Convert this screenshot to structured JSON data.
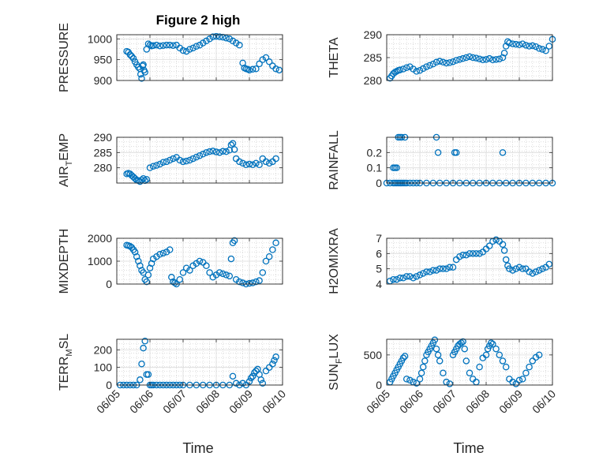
{
  "figure": {
    "title": "Figure 2 high",
    "x_label": "Time"
  },
  "colors": {
    "marker": "#0072BD",
    "axis": "#262626",
    "grid_minor": "#c8c8c8",
    "grid_major": "#dcdcdc"
  },
  "chart_data": [
    {
      "id": "pressure",
      "type": "scatter",
      "marker": "open-circle",
      "ylabel": "PRESSURE",
      "ylabel_sub": "",
      "xlim": [
        0,
        5
      ],
      "xticks": [
        0,
        1,
        2,
        3,
        4,
        5
      ],
      "xticklabels": [
        "06/05",
        "06/06",
        "06/07",
        "06/08",
        "06/09",
        "06/10"
      ],
      "show_xticklabels": false,
      "ylim": [
        900,
        1010
      ],
      "yticks": [
        900,
        950,
        1000
      ],
      "yticklabels": [
        "900",
        "950",
        "1000"
      ],
      "grid": "on-minor",
      "x": [
        0.3,
        0.35,
        0.4,
        0.45,
        0.5,
        0.55,
        0.6,
        0.65,
        0.7,
        0.72,
        0.75,
        0.78,
        0.8,
        0.82,
        0.85,
        0.9,
        0.95,
        1.0,
        1.05,
        1.1,
        1.2,
        1.3,
        1.4,
        1.5,
        1.6,
        1.7,
        1.8,
        1.9,
        2.0,
        2.1,
        2.2,
        2.3,
        2.4,
        2.5,
        2.6,
        2.7,
        2.8,
        2.9,
        3.0,
        3.1,
        3.2,
        3.3,
        3.4,
        3.5,
        3.6,
        3.7,
        3.8,
        3.85,
        3.9,
        3.95,
        4.0,
        4.1,
        4.2,
        4.3,
        4.4,
        4.5,
        4.6,
        4.7,
        4.8,
        4.9
      ],
      "y": [
        970,
        968,
        962,
        958,
        953,
        945,
        938,
        932,
        928,
        915,
        905,
        935,
        938,
        925,
        920,
        975,
        988,
        985,
        983,
        984,
        985,
        983,
        984,
        985,
        985,
        984,
        985,
        978,
        972,
        970,
        975,
        978,
        982,
        985,
        990,
        995,
        1000,
        1005,
        1006,
        1005,
        1004,
        1002,
        1000,
        995,
        990,
        985,
        942,
        930,
        928,
        927,
        925,
        927,
        928,
        940,
        950,
        955,
        945,
        935,
        928,
        925
      ]
    },
    {
      "id": "theta",
      "type": "scatter",
      "marker": "open-circle",
      "ylabel": "THETA",
      "ylabel_sub": "",
      "xlim": [
        0,
        5
      ],
      "xticks": [
        0,
        1,
        2,
        3,
        4,
        5
      ],
      "xticklabels": [
        "06/05",
        "06/06",
        "06/07",
        "06/08",
        "06/09",
        "06/10"
      ],
      "show_xticklabels": false,
      "ylim": [
        280,
        290
      ],
      "yticks": [
        280,
        285,
        290
      ],
      "yticklabels": [
        "280",
        "285",
        "290"
      ],
      "grid": "on-minor",
      "x": [
        0.1,
        0.15,
        0.2,
        0.25,
        0.3,
        0.35,
        0.4,
        0.5,
        0.6,
        0.7,
        0.8,
        0.9,
        1.0,
        1.1,
        1.2,
        1.3,
        1.4,
        1.5,
        1.6,
        1.7,
        1.8,
        1.9,
        2.0,
        2.1,
        2.2,
        2.3,
        2.4,
        2.5,
        2.6,
        2.7,
        2.8,
        2.9,
        3.0,
        3.1,
        3.2,
        3.3,
        3.4,
        3.5,
        3.55,
        3.6,
        3.65,
        3.7,
        3.8,
        3.9,
        4.0,
        4.1,
        4.2,
        4.3,
        4.4,
        4.5,
        4.6,
        4.7,
        4.8,
        4.9,
        5.0
      ],
      "y": [
        280.5,
        281.0,
        281.5,
        281.8,
        282.0,
        282.2,
        282.3,
        282.5,
        282.8,
        283.0,
        282.5,
        282.0,
        282.2,
        282.6,
        283.0,
        283.3,
        283.6,
        284.0,
        284.2,
        284.0,
        283.8,
        283.9,
        284.1,
        284.4,
        284.6,
        284.8,
        285.0,
        285.2,
        285.0,
        284.9,
        284.7,
        284.5,
        284.6,
        284.8,
        284.5,
        284.6,
        284.7,
        285.0,
        286.0,
        287.5,
        288.5,
        288.2,
        288.0,
        287.9,
        287.8,
        288.0,
        287.7,
        287.5,
        287.6,
        287.4,
        287.0,
        286.8,
        286.5,
        287.5,
        289.0
      ]
    },
    {
      "id": "air_temp",
      "type": "scatter",
      "marker": "open-circle",
      "ylabel": "AIR",
      "ylabel_sub": "T",
      "ylabel_after": "EMP",
      "xlim": [
        0,
        5
      ],
      "xticks": [
        0,
        1,
        2,
        3,
        4,
        5
      ],
      "xticklabels": [
        "06/05",
        "06/06",
        "06/07",
        "06/08",
        "06/09",
        "06/10"
      ],
      "show_xticklabels": false,
      "ylim": [
        275,
        290
      ],
      "yticks": [
        280,
        285,
        290
      ],
      "yticklabels": [
        "280",
        "285",
        "290"
      ],
      "grid": "on-minor",
      "x": [
        0.3,
        0.35,
        0.4,
        0.45,
        0.5,
        0.55,
        0.6,
        0.65,
        0.7,
        0.75,
        0.8,
        0.85,
        0.9,
        1.0,
        1.1,
        1.2,
        1.3,
        1.4,
        1.5,
        1.6,
        1.7,
        1.8,
        1.9,
        2.0,
        2.1,
        2.2,
        2.3,
        2.4,
        2.5,
        2.6,
        2.7,
        2.8,
        2.9,
        3.0,
        3.1,
        3.2,
        3.3,
        3.4,
        3.45,
        3.5,
        3.55,
        3.6,
        3.7,
        3.8,
        3.9,
        4.0,
        4.1,
        4.2,
        4.3,
        4.4,
        4.5,
        4.6,
        4.7,
        4.8
      ],
      "y": [
        278.0,
        278.2,
        278.0,
        277.5,
        277.0,
        276.5,
        276.0,
        275.8,
        275.5,
        276.0,
        276.5,
        275.8,
        276.2,
        280.0,
        280.5,
        280.8,
        281.2,
        281.8,
        282.0,
        282.5,
        283.0,
        283.4,
        282.5,
        282.0,
        282.2,
        282.5,
        283.0,
        283.5,
        284.0,
        284.5,
        285.0,
        285.3,
        285.5,
        285.2,
        285.0,
        285.4,
        285.3,
        285.8,
        287.5,
        288.0,
        286.0,
        283.0,
        282.0,
        281.5,
        281.0,
        281.2,
        281.0,
        281.5,
        281.0,
        283.0,
        282.0,
        281.5,
        282.0,
        283.0
      ]
    },
    {
      "id": "rainfall",
      "type": "scatter",
      "marker": "open-circle",
      "ylabel": "RAINFALL",
      "ylabel_sub": "",
      "xlim": [
        0,
        5
      ],
      "xticks": [
        0,
        1,
        2,
        3,
        4,
        5
      ],
      "xticklabels": [
        "06/05",
        "06/06",
        "06/07",
        "06/08",
        "06/09",
        "06/10"
      ],
      "show_xticklabels": false,
      "ylim": [
        0,
        0.3
      ],
      "yticks": [
        0,
        0.1,
        0.2
      ],
      "yticklabels": [
        "0",
        "0.1",
        "0.2"
      ],
      "grid": "on-minor",
      "x": [
        0.0,
        0.1,
        0.2,
        0.25,
        0.3,
        0.35,
        0.4,
        0.45,
        0.5,
        0.55,
        0.6,
        0.7,
        0.8,
        0.9,
        1.0,
        1.2,
        1.4,
        1.6,
        1.8,
        2.0,
        2.2,
        2.4,
        2.6,
        2.8,
        3.0,
        3.2,
        3.4,
        3.6,
        3.8,
        4.0,
        4.2,
        4.4,
        4.6,
        4.8,
        5.0,
        0.2,
        0.25,
        0.3,
        0.35,
        0.4,
        0.45,
        0.55,
        1.5,
        1.55,
        2.05,
        2.1,
        3.5
      ],
      "y": [
        0,
        0,
        0,
        0,
        0,
        0,
        0,
        0,
        0,
        0,
        0,
        0,
        0,
        0,
        0,
        0,
        0,
        0,
        0,
        0,
        0,
        0,
        0,
        0,
        0,
        0,
        0,
        0,
        0,
        0,
        0,
        0,
        0,
        0,
        0,
        0.1,
        0.1,
        0.1,
        0.3,
        0.3,
        0.3,
        0.3,
        0.3,
        0.2,
        0.2,
        0.2,
        0.2
      ]
    },
    {
      "id": "mixdepth",
      "type": "scatter",
      "marker": "open-circle",
      "ylabel": "MIXDEPTH",
      "ylabel_sub": "",
      "xlim": [
        0,
        5
      ],
      "xticks": [
        0,
        1,
        2,
        3,
        4,
        5
      ],
      "xticklabels": [
        "06/05",
        "06/06",
        "06/07",
        "06/08",
        "06/09",
        "06/10"
      ],
      "show_xticklabels": false,
      "ylim": [
        0,
        2000
      ],
      "yticks": [
        0,
        1000,
        2000
      ],
      "yticklabels": [
        "0",
        "1000",
        "2000"
      ],
      "grid": "on-minor",
      "x": [
        0.3,
        0.35,
        0.4,
        0.45,
        0.5,
        0.55,
        0.6,
        0.65,
        0.7,
        0.75,
        0.8,
        0.85,
        0.9,
        0.95,
        1.0,
        1.05,
        1.1,
        1.2,
        1.3,
        1.4,
        1.5,
        1.6,
        1.65,
        1.7,
        1.75,
        1.8,
        1.9,
        2.0,
        2.1,
        2.2,
        2.3,
        2.4,
        2.5,
        2.6,
        2.7,
        2.8,
        2.9,
        3.0,
        3.1,
        3.2,
        3.3,
        3.4,
        3.45,
        3.5,
        3.55,
        3.6,
        3.7,
        3.8,
        3.9,
        4.0,
        4.1,
        4.2,
        4.3,
        4.4,
        4.5,
        4.6,
        4.7,
        4.8
      ],
      "y": [
        1700,
        1680,
        1650,
        1600,
        1500,
        1400,
        1200,
        1000,
        800,
        600,
        500,
        200,
        100,
        400,
        700,
        900,
        1100,
        1200,
        1300,
        1350,
        1400,
        1500,
        300,
        100,
        50,
        0,
        200,
        500,
        700,
        600,
        800,
        900,
        1000,
        950,
        800,
        500,
        300,
        400,
        500,
        450,
        400,
        350,
        1100,
        1800,
        1900,
        200,
        100,
        50,
        0,
        30,
        50,
        100,
        150,
        500,
        1000,
        1200,
        1500,
        1800
      ]
    },
    {
      "id": "h2omixra",
      "type": "scatter",
      "marker": "open-circle",
      "ylabel": "H2OMIXRA",
      "ylabel_sub": "",
      "xlim": [
        0,
        5
      ],
      "xticks": [
        0,
        1,
        2,
        3,
        4,
        5
      ],
      "xticklabels": [
        "06/05",
        "06/06",
        "06/07",
        "06/08",
        "06/09",
        "06/10"
      ],
      "show_xticklabels": false,
      "ylim": [
        4,
        7
      ],
      "yticks": [
        4,
        5,
        6,
        7
      ],
      "yticklabels": [
        "4",
        "5",
        "6",
        "7"
      ],
      "grid": "on-minor",
      "x": [
        0.1,
        0.2,
        0.3,
        0.4,
        0.5,
        0.6,
        0.7,
        0.8,
        0.9,
        1.0,
        1.1,
        1.2,
        1.3,
        1.4,
        1.5,
        1.6,
        1.7,
        1.8,
        1.9,
        2.0,
        2.1,
        2.2,
        2.3,
        2.4,
        2.5,
        2.6,
        2.7,
        2.8,
        2.9,
        3.0,
        3.1,
        3.2,
        3.3,
        3.4,
        3.5,
        3.55,
        3.6,
        3.65,
        3.7,
        3.8,
        3.9,
        4.0,
        4.1,
        4.2,
        4.3,
        4.4,
        4.5,
        4.6,
        4.7,
        4.8,
        4.9
      ],
      "y": [
        4.2,
        4.3,
        4.3,
        4.4,
        4.4,
        4.5,
        4.5,
        4.4,
        4.5,
        4.6,
        4.7,
        4.8,
        4.8,
        4.9,
        4.9,
        5.0,
        5.0,
        5.0,
        5.1,
        5.1,
        5.6,
        5.8,
        5.9,
        5.9,
        6.0,
        6.0,
        6.0,
        6.0,
        6.1,
        6.3,
        6.5,
        6.8,
        6.9,
        6.8,
        6.6,
        6.2,
        5.6,
        5.2,
        5.0,
        4.9,
        5.0,
        5.1,
        5.0,
        5.0,
        4.8,
        4.7,
        4.8,
        4.9,
        5.0,
        5.1,
        5.3
      ]
    },
    {
      "id": "terr_msl",
      "type": "scatter",
      "marker": "open-circle",
      "ylabel": "TERR",
      "ylabel_sub": "M",
      "ylabel_after": "SL",
      "xlim": [
        0,
        5
      ],
      "xticks": [
        0,
        1,
        2,
        3,
        4,
        5
      ],
      "xticklabels": [
        "06/05",
        "06/06",
        "06/07",
        "06/08",
        "06/09",
        "06/10"
      ],
      "show_xticklabels": true,
      "ylim": [
        0,
        260
      ],
      "yticks": [
        0,
        100,
        200
      ],
      "yticklabels": [
        "0",
        "100",
        "200"
      ],
      "grid": "on-minor",
      "x": [
        0.1,
        0.2,
        0.3,
        0.4,
        0.5,
        0.6,
        0.7,
        0.75,
        0.8,
        0.85,
        0.9,
        0.95,
        1.0,
        1.05,
        1.1,
        1.2,
        1.3,
        1.4,
        1.5,
        1.6,
        1.7,
        1.8,
        1.9,
        2.0,
        2.2,
        2.4,
        2.6,
        2.8,
        3.0,
        3.2,
        3.4,
        3.5,
        3.6,
        3.7,
        3.8,
        3.9,
        4.0,
        4.05,
        4.1,
        4.15,
        4.2,
        4.25,
        4.3,
        4.35,
        4.4,
        4.5,
        4.6,
        4.7,
        4.75,
        4.8
      ],
      "y": [
        0,
        0,
        0,
        0,
        0,
        0,
        30,
        120,
        210,
        250,
        60,
        60,
        0,
        0,
        0,
        0,
        0,
        0,
        0,
        0,
        0,
        0,
        0,
        0,
        0,
        0,
        0,
        0,
        0,
        0,
        0,
        50,
        10,
        0,
        10,
        0,
        20,
        40,
        50,
        70,
        80,
        90,
        60,
        30,
        10,
        80,
        100,
        120,
        140,
        160
      ]
    },
    {
      "id": "sun_flux",
      "type": "scatter",
      "marker": "open-circle",
      "ylabel": "SUN",
      "ylabel_sub": "F",
      "ylabel_after": "LUX",
      "xlim": [
        0,
        5
      ],
      "xticks": [
        0,
        1,
        2,
        3,
        4,
        5
      ],
      "xticklabels": [
        "06/05",
        "06/06",
        "06/07",
        "06/08",
        "06/09",
        "06/10"
      ],
      "show_xticklabels": true,
      "ylim": [
        0,
        760
      ],
      "yticks": [
        0,
        500
      ],
      "yticklabels": [
        "0",
        "500"
      ],
      "grid": "on-minor",
      "x": [
        0.1,
        0.15,
        0.2,
        0.25,
        0.3,
        0.35,
        0.4,
        0.45,
        0.5,
        0.55,
        0.6,
        0.7,
        0.8,
        0.9,
        1.0,
        1.05,
        1.1,
        1.15,
        1.2,
        1.25,
        1.3,
        1.35,
        1.4,
        1.45,
        1.5,
        1.55,
        1.6,
        1.7,
        1.8,
        1.9,
        2.0,
        2.05,
        2.1,
        2.15,
        2.2,
        2.25,
        2.3,
        2.35,
        2.4,
        2.5,
        2.6,
        2.7,
        2.8,
        2.9,
        3.0,
        3.05,
        3.1,
        3.15,
        3.2,
        3.3,
        3.4,
        3.5,
        3.6,
        3.7,
        3.8,
        3.9,
        4.0,
        4.1,
        4.2,
        4.3,
        4.4,
        4.5,
        4.6
      ],
      "y": [
        50,
        100,
        150,
        200,
        250,
        300,
        350,
        400,
        450,
        480,
        100,
        80,
        50,
        30,
        100,
        200,
        300,
        400,
        500,
        550,
        600,
        650,
        700,
        750,
        600,
        500,
        400,
        200,
        50,
        20,
        500,
        550,
        600,
        650,
        680,
        700,
        720,
        600,
        400,
        200,
        100,
        50,
        300,
        450,
        500,
        600,
        650,
        700,
        680,
        600,
        500,
        400,
        300,
        100,
        50,
        20,
        80,
        100,
        200,
        300,
        400,
        460,
        500
      ]
    }
  ]
}
